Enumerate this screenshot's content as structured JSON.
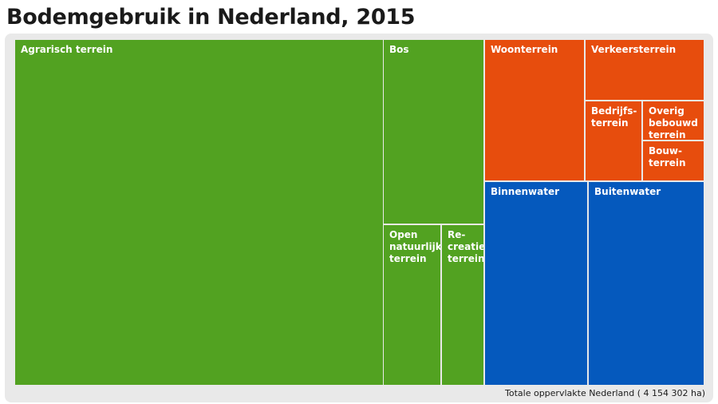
{
  "title": "Bodemgebruik in Nederland, 2015",
  "footer": "Totale oppervlakte Nederland ( 4 154 302 ha)",
  "colors": {
    "green": "#52a221",
    "orange": "#e74d0d",
    "blue": "#0559bd",
    "panel": "#e9e9e9"
  },
  "chart_data": {
    "type": "treemap",
    "title": "Bodemgebruik in Nederland, 2015",
    "total": "4 154 302 ha",
    "groups": [
      {
        "color": "green",
        "items": [
          {
            "label": "Agrarisch terrein"
          },
          {
            "label": "Bos"
          },
          {
            "label": "Open\nnatuurlijk\nterrein"
          },
          {
            "label": "Re-\ncreatie-\nterrein"
          }
        ]
      },
      {
        "color": "orange",
        "items": [
          {
            "label": "Woonterrein"
          },
          {
            "label": "Verkeersterrein"
          },
          {
            "label": "Bedrijfs-\nterrein"
          },
          {
            "label": "Overig\nbebouwd\nterrein"
          },
          {
            "label": "Bouw-\nterrein"
          }
        ]
      },
      {
        "color": "blue",
        "items": [
          {
            "label": "Binnenwater"
          },
          {
            "label": "Buitenwater"
          }
        ]
      }
    ]
  }
}
